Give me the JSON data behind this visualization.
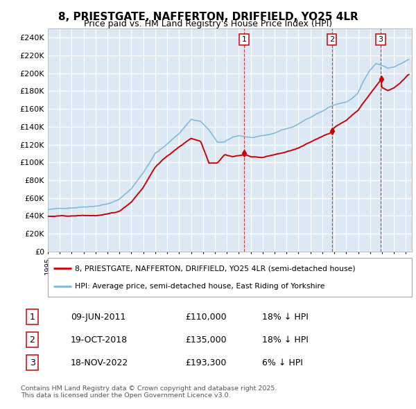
{
  "title": "8, PRIESTGATE, NAFFERTON, DRIFFIELD, YO25 4LR",
  "subtitle": "Price paid vs. HM Land Registry's House Price Index (HPI)",
  "legend_property": "8, PRIESTGATE, NAFFERTON, DRIFFIELD, YO25 4LR (semi-detached house)",
  "legend_hpi": "HPI: Average price, semi-detached house, East Riding of Yorkshire",
  "transactions": [
    {
      "num": 1,
      "date": "09-JUN-2011",
      "date_dec": 2011.44,
      "price": 110000,
      "pct": "18%",
      "dir": "↓"
    },
    {
      "num": 2,
      "date": "19-OCT-2018",
      "date_dec": 2018.8,
      "price": 135000,
      "pct": "18%",
      "dir": "↓"
    },
    {
      "num": 3,
      "date": "18-NOV-2022",
      "date_dec": 2022.88,
      "price": 193300,
      "pct": "6%",
      "dir": "↓"
    }
  ],
  "ylim": [
    0,
    250000
  ],
  "background_color": "#ffffff",
  "plot_bg_color": "#dce9f5",
  "grid_color": "#ffffff",
  "hpi_color": "#7ab8d9",
  "property_color": "#cc0000",
  "vline_color": "#cc0000",
  "footnote_line1": "Contains HM Land Registry data © Crown copyright and database right 2025.",
  "footnote_line2": "This data is licensed under the Open Government Licence v3.0.",
  "hpi_anchors_x": [
    1995.0,
    1996.0,
    1997.0,
    1998.0,
    1999.0,
    2000.0,
    2001.0,
    2002.0,
    2003.0,
    2004.0,
    2005.0,
    2006.0,
    2007.0,
    2007.8,
    2008.5,
    2009.2,
    2009.8,
    2010.5,
    2011.0,
    2011.5,
    2012.0,
    2012.5,
    2013.0,
    2013.5,
    2014.0,
    2014.5,
    2015.0,
    2015.5,
    2016.0,
    2016.5,
    2017.0,
    2017.5,
    2018.0,
    2018.5,
    2019.0,
    2019.5,
    2020.0,
    2020.5,
    2021.0,
    2021.5,
    2022.0,
    2022.5,
    2023.0,
    2023.5,
    2024.0,
    2024.5,
    2025.2
  ],
  "hpi_anchors_y": [
    47000,
    48000,
    49500,
    51000,
    52500,
    55000,
    60000,
    72000,
    90000,
    112000,
    122000,
    134000,
    150000,
    148000,
    138000,
    124000,
    124000,
    129000,
    131000,
    130000,
    129000,
    129000,
    130000,
    131000,
    133000,
    136000,
    138000,
    140000,
    143000,
    147000,
    151000,
    155000,
    158000,
    162000,
    165000,
    167000,
    168000,
    172000,
    178000,
    192000,
    203000,
    210000,
    208000,
    205000,
    207000,
    210000,
    215000
  ],
  "prop_anchors_x": [
    1995.0,
    1996.0,
    1997.0,
    1998.0,
    1999.0,
    2000.0,
    2001.0,
    2002.0,
    2003.0,
    2004.0,
    2005.0,
    2006.0,
    2007.0,
    2007.8,
    2008.5,
    2009.2,
    2009.8,
    2010.5,
    2011.44,
    2012.0,
    2013.0,
    2014.0,
    2015.0,
    2016.0,
    2017.0,
    2018.0,
    2018.8,
    2019.0,
    2020.0,
    2021.0,
    2022.0,
    2022.88,
    2023.0,
    2023.5,
    2024.0,
    2024.5,
    2025.2
  ],
  "prop_anchors_y": [
    39500,
    39500,
    39500,
    40000,
    40000,
    41000,
    44000,
    55000,
    72000,
    95000,
    107000,
    117000,
    127000,
    124000,
    100000,
    100500,
    110000,
    108000,
    110000,
    108000,
    107000,
    110000,
    113000,
    117000,
    123000,
    130000,
    135000,
    140000,
    148000,
    160000,
    178000,
    193300,
    185000,
    182000,
    185000,
    190000,
    200000
  ]
}
